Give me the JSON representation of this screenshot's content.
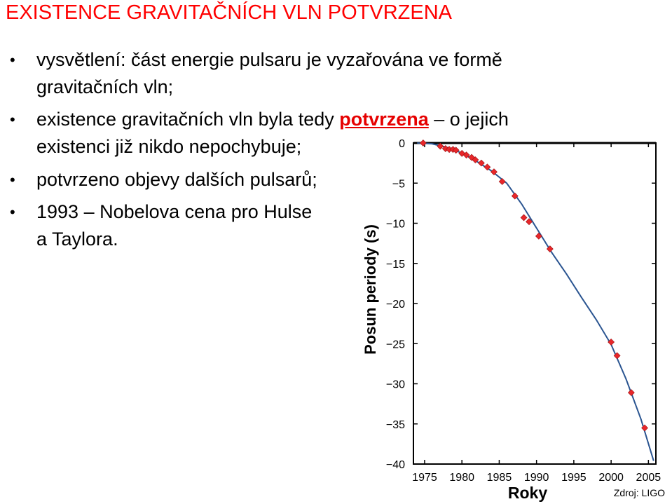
{
  "title": "EXISTENCE GRAVITAČNÍCH VLN POTVRZENA",
  "bullets": [
    {
      "line1": "vysvětlení: část energie pulsaru je vyzařována ve formě",
      "line2": "gravitačních vln;"
    },
    {
      "line1_a": "existence gravitačních vln byla tedy ",
      "line1_highlight": "potvrzena",
      "line1_b": " – o jejich",
      "line2": "existenci již nikdo nepochybuje;"
    },
    {
      "line1": "potvrzeno objevy dalších pulsarů;"
    },
    {
      "line1": "1993 – Nobelova cena pro Hulse",
      "line2": "a Taylora."
    }
  ],
  "source": "Zdroj: LIGO",
  "chart_data": {
    "type": "scatter",
    "xlabel": "Roky",
    "ylabel": "Posun periody (s)",
    "xlim": [
      1973.5,
      2006
    ],
    "ylim": [
      -40,
      0
    ],
    "x_ticks": [
      1975,
      1980,
      1985,
      1990,
      1995,
      2000,
      2005
    ],
    "y_ticks": [
      0,
      -5,
      -10,
      -15,
      -20,
      -25,
      -30,
      -35,
      -40
    ],
    "points": [
      {
        "x": 1974.8,
        "y": 0.0
      },
      {
        "x": 1977.1,
        "y": -0.4
      },
      {
        "x": 1977.8,
        "y": -0.7
      },
      {
        "x": 1978.3,
        "y": -0.8
      },
      {
        "x": 1978.8,
        "y": -0.8
      },
      {
        "x": 1979.2,
        "y": -0.9
      },
      {
        "x": 1980.0,
        "y": -1.3
      },
      {
        "x": 1980.6,
        "y": -1.5
      },
      {
        "x": 1981.3,
        "y": -1.8
      },
      {
        "x": 1981.8,
        "y": -2.1
      },
      {
        "x": 1982.6,
        "y": -2.5
      },
      {
        "x": 1983.4,
        "y": -3.0
      },
      {
        "x": 1984.3,
        "y": -3.6
      },
      {
        "x": 1985.4,
        "y": -4.8
      },
      {
        "x": 1987.1,
        "y": -6.6
      },
      {
        "x": 1988.3,
        "y": -9.3
      },
      {
        "x": 1989.0,
        "y": -9.8
      },
      {
        "x": 1990.3,
        "y": -11.6
      },
      {
        "x": 1991.8,
        "y": -13.2
      },
      {
        "x": 2000.0,
        "y": -24.8
      },
      {
        "x": 2000.8,
        "y": -26.5
      },
      {
        "x": 2002.7,
        "y": -31.1
      },
      {
        "x": 2004.5,
        "y": -35.5
      }
    ],
    "curve": [
      {
        "x": 1974.0,
        "y": 0.0
      },
      {
        "x": 1976.0,
        "y": -0.1
      },
      {
        "x": 1978.0,
        "y": -0.55
      },
      {
        "x": 1980.0,
        "y": -1.25
      },
      {
        "x": 1982.0,
        "y": -2.3
      },
      {
        "x": 1984.0,
        "y": -3.5
      },
      {
        "x": 1986.0,
        "y": -5.0
      },
      {
        "x": 1988.0,
        "y": -7.6
      },
      {
        "x": 1990.0,
        "y": -10.6
      },
      {
        "x": 1992.0,
        "y": -13.6
      },
      {
        "x": 1994.0,
        "y": -16.3
      },
      {
        "x": 1996.0,
        "y": -19.2
      },
      {
        "x": 1998.0,
        "y": -22.0
      },
      {
        "x": 2000.0,
        "y": -25.1
      },
      {
        "x": 2002.0,
        "y": -29.4
      },
      {
        "x": 2004.0,
        "y": -34.4
      },
      {
        "x": 2005.7,
        "y": -39.6
      }
    ],
    "colors": {
      "marker": "#e8272a",
      "curve": "#2b5591",
      "frame": "#000000"
    },
    "grid": false
  }
}
